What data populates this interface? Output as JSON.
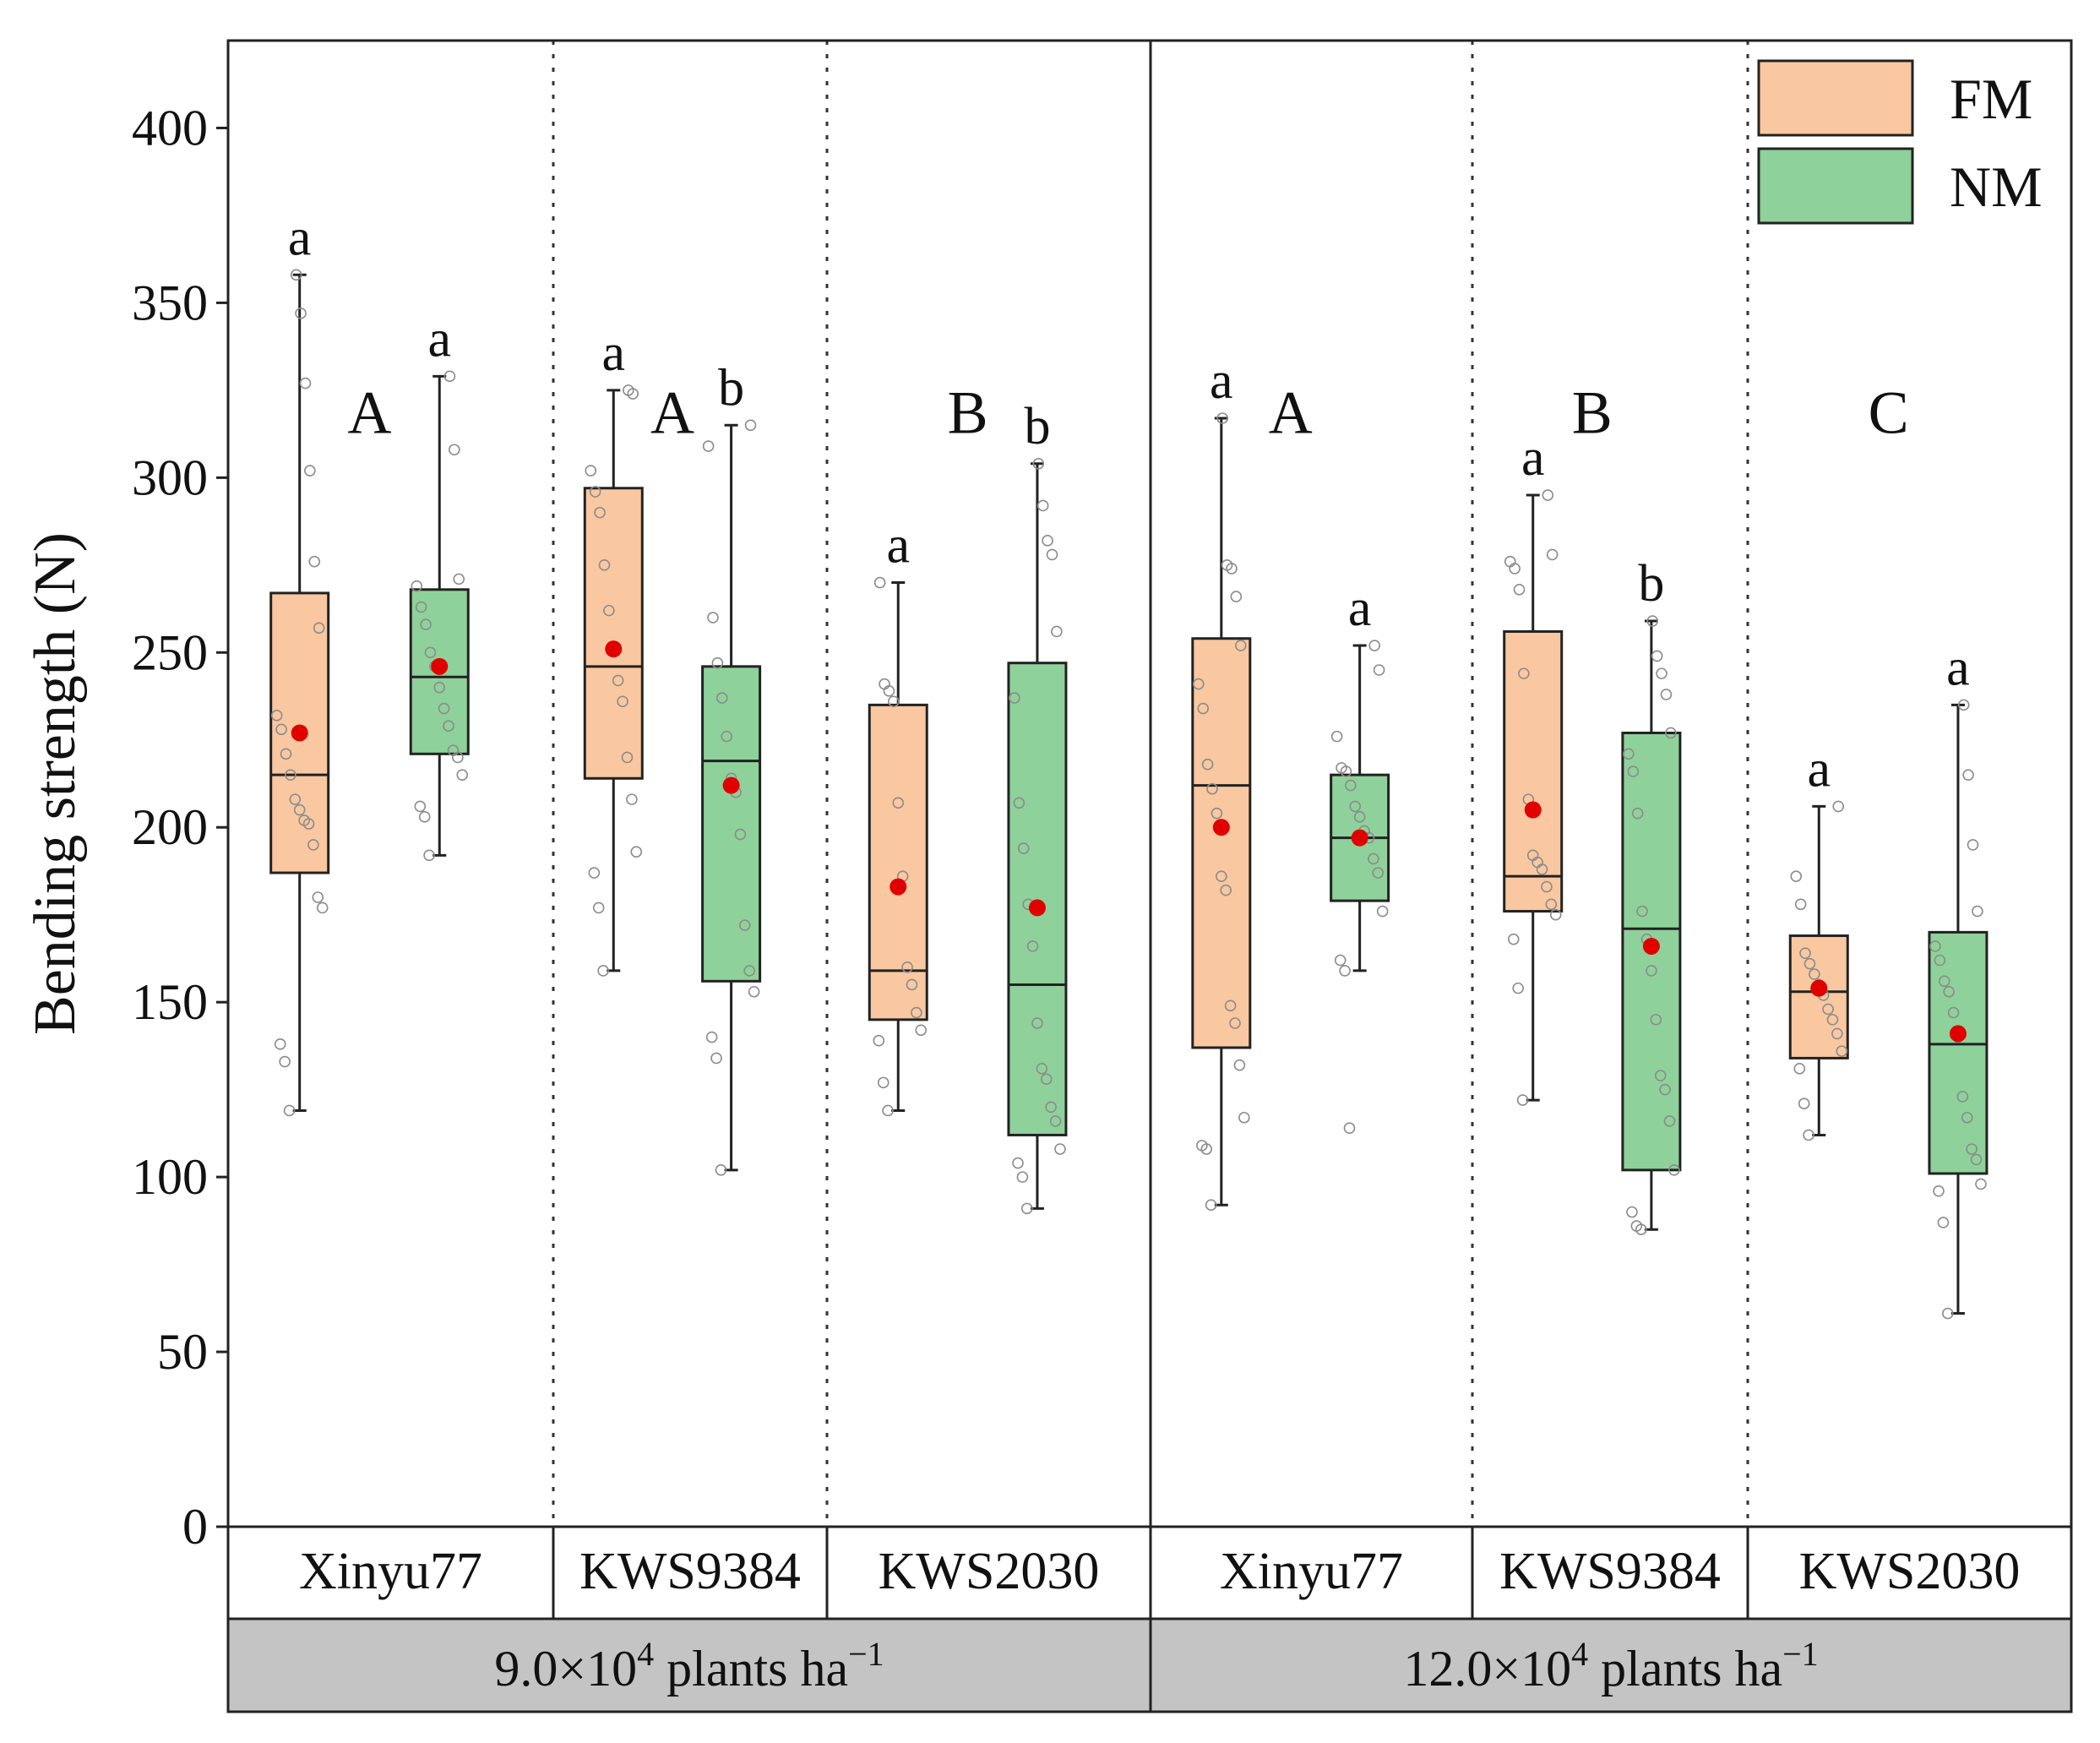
{
  "chart_data": {
    "type": "boxplot",
    "ylabel": "Bending strength  (N)",
    "ylim": [
      0,
      425
    ],
    "yticks": [
      0,
      50,
      100,
      150,
      200,
      250,
      300,
      350,
      400
    ],
    "legend": {
      "position": "top-right",
      "entries": [
        {
          "name": "FM",
          "color": "#F9C8A0"
        },
        {
          "name": "NM",
          "color": "#8FD19A"
        }
      ]
    },
    "colors": {
      "FM": "#F9C8A0",
      "NM": "#8FD19A",
      "mean": "#E00000",
      "strip": "#BDBDBD"
    },
    "densities": [
      {
        "label_base": "9.0×10",
        "label_sup": "4",
        "label_unit": " plants ha",
        "label_unit_sup": "−1"
      },
      {
        "label_base": "12.0×10",
        "label_sup": "4",
        "label_unit": " plants ha",
        "label_unit_sup": "−1"
      }
    ],
    "groups": [
      {
        "density": 0,
        "cultivar": "Xinyu77",
        "group_letter": "A",
        "boxes": [
          {
            "treatment": "FM",
            "min": 119,
            "q1": 187,
            "median": 215,
            "q3": 267,
            "max": 358,
            "mean": 227,
            "letter": "a",
            "points": [
              119,
              133,
              138,
              177,
              180,
              195,
              201,
              202,
              205,
              208,
              215,
              221,
              228,
              232,
              257,
              276,
              302,
              327,
              347,
              358
            ]
          },
          {
            "treatment": "NM",
            "min": 192,
            "q1": 221,
            "median": 243,
            "q3": 268,
            "max": 329,
            "mean": 246,
            "letter": "a",
            "points": [
              192,
              203,
              206,
              215,
              220,
              222,
              229,
              234,
              240,
              246,
              250,
              258,
              263,
              269,
              271,
              308,
              329
            ]
          }
        ]
      },
      {
        "density": 0,
        "cultivar": "KWS9384",
        "group_letter": "A",
        "boxes": [
          {
            "treatment": "FM",
            "min": 159,
            "q1": 214,
            "median": 246,
            "q3": 297,
            "max": 325,
            "mean": 251,
            "letter": "a",
            "points": [
              159,
              177,
              187,
              193,
              208,
              220,
              236,
              242,
              251,
              262,
              275,
              290,
              296,
              302,
              324,
              325
            ]
          },
          {
            "treatment": "NM",
            "min": 102,
            "q1": 156,
            "median": 219,
            "q3": 246,
            "max": 315,
            "mean": 212,
            "letter": "b",
            "points": [
              102,
              134,
              140,
              153,
              159,
              172,
              198,
              210,
              214,
              226,
              237,
              247,
              260,
              309,
              315
            ]
          }
        ]
      },
      {
        "density": 0,
        "cultivar": "KWS2030",
        "group_letter": "B",
        "boxes": [
          {
            "treatment": "FM",
            "min": 119,
            "q1": 145,
            "median": 159,
            "q3": 235,
            "max": 270,
            "mean": 183,
            "letter": "a",
            "points": [
              119,
              127,
              139,
              142,
              147,
              155,
              160,
              186,
              207,
              236,
              239,
              241,
              270
            ]
          },
          {
            "treatment": "NM",
            "min": 91,
            "q1": 112,
            "median": 155,
            "q3": 247,
            "max": 304,
            "mean": 177,
            "letter": "b",
            "points": [
              91,
              100,
              104,
              108,
              116,
              120,
              128,
              131,
              144,
              166,
              178,
              194,
              207,
              237,
              256,
              278,
              282,
              292,
              304
            ]
          }
        ]
      },
      {
        "density": 1,
        "cultivar": "Xinyu77",
        "group_letter": "A",
        "boxes": [
          {
            "treatment": "FM",
            "min": 92,
            "q1": 137,
            "median": 212,
            "q3": 254,
            "max": 317,
            "mean": 200,
            "letter": "a",
            "points": [
              92,
              108,
              109,
              117,
              132,
              144,
              149,
              182,
              186,
              204,
              211,
              218,
              234,
              241,
              252,
              266,
              274,
              275,
              317
            ]
          },
          {
            "treatment": "NM",
            "min": 159,
            "q1": 179,
            "median": 197,
            "q3": 215,
            "max": 252,
            "mean": 197,
            "letter": "a",
            "points": [
              114,
              159,
              162,
              176,
              187,
              191,
              197,
              199,
              203,
              206,
              212,
              216,
              217,
              226,
              245,
              252
            ]
          }
        ]
      },
      {
        "density": 1,
        "cultivar": "KWS9384",
        "group_letter": "B",
        "boxes": [
          {
            "treatment": "FM",
            "min": 122,
            "q1": 176,
            "median": 186,
            "q3": 256,
            "max": 295,
            "mean": 205,
            "letter": "a",
            "points": [
              122,
              154,
              168,
              175,
              178,
              183,
              188,
              190,
              192,
              208,
              244,
              268,
              274,
              276,
              278,
              295
            ]
          },
          {
            "treatment": "NM",
            "min": 85,
            "q1": 102,
            "median": 171,
            "q3": 227,
            "max": 259,
            "mean": 166,
            "letter": "b",
            "points": [
              85,
              86,
              90,
              102,
              116,
              125,
              129,
              145,
              159,
              168,
              176,
              204,
              216,
              221,
              227,
              238,
              244,
              249,
              259
            ]
          }
        ]
      },
      {
        "density": 1,
        "cultivar": "KWS2030",
        "group_letter": "C",
        "boxes": [
          {
            "treatment": "FM",
            "min": 112,
            "q1": 134,
            "median": 153,
            "q3": 169,
            "max": 206,
            "mean": 154,
            "letter": "a",
            "points": [
              112,
              121,
              131,
              136,
              141,
              145,
              148,
              152,
              155,
              158,
              161,
              164,
              178,
              186,
              206
            ]
          },
          {
            "treatment": "NM",
            "min": 61,
            "q1": 101,
            "median": 138,
            "q3": 170,
            "max": 235,
            "mean": 141,
            "letter": "a",
            "points": [
              61,
              87,
              96,
              98,
              105,
              108,
              117,
              123,
              140,
              147,
              153,
              156,
              162,
              166,
              176,
              195,
              215,
              235
            ]
          }
        ]
      }
    ]
  }
}
